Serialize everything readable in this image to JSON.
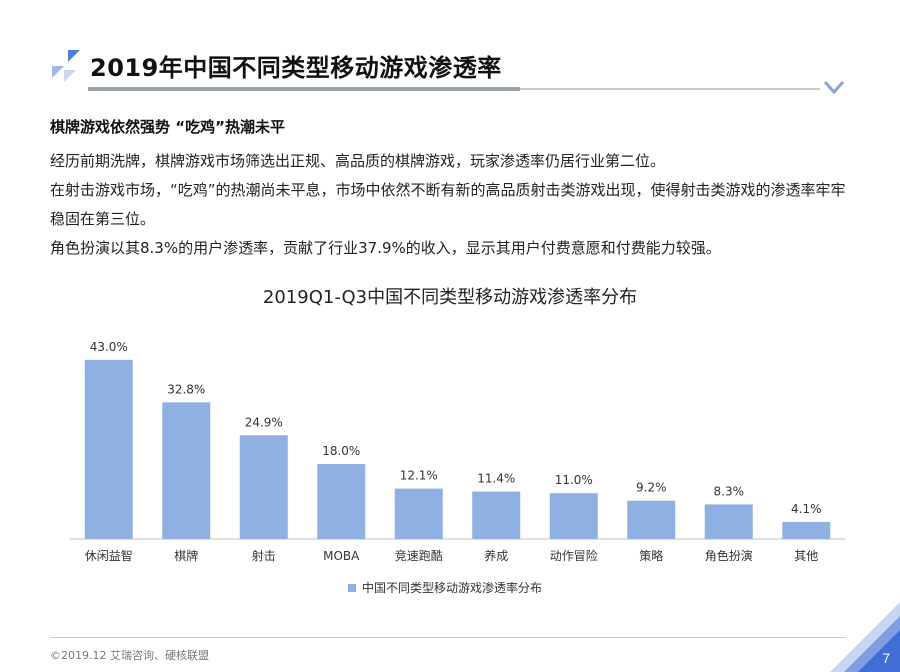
{
  "header": {
    "title": "2019年中国不同类型移动游戏渗透率"
  },
  "section": {
    "heading": "棋牌游戏依然强势 “吃鸡”热潮未平",
    "paragraphs": [
      "经历前期洗牌，棋牌游戏市场筛选出正规、高品质的棋牌游戏，玩家渗透率仍居行业第二位。",
      "在射击游戏市场，“吃鸡”的热潮尚未平息，市场中依然不断有新的高品质射击类游戏出现，使得射击类游戏的渗透率牢牢稳固在第三位。",
      "角色扮演以其8.3%的用户渗透率，贡献了行业37.9%的收入，显示其用户付费意愿和付费能力较强。"
    ]
  },
  "chart_data": {
    "type": "bar",
    "title": "2019Q1-Q3中国不同类型移动游戏渗透率分布",
    "categories": [
      "休闲益智",
      "棋牌",
      "射击",
      "MOBA",
      "竞速跑酷",
      "养成",
      "动作冒险",
      "策略",
      "角色扮演",
      "其他"
    ],
    "series": [
      {
        "name": "中国不同类型移动游戏渗透率分布",
        "values": [
          43.0,
          32.8,
          24.9,
          18.0,
          12.1,
          11.4,
          11.0,
          9.2,
          8.3,
          4.1
        ],
        "labels": [
          "43.0%",
          "32.8%",
          "24.9%",
          "18.0%",
          "12.1%",
          "11.4%",
          "11.0%",
          "9.2%",
          "8.3%",
          "4.1%"
        ]
      }
    ],
    "ylim": [
      0,
      48
    ],
    "xlabel": "",
    "ylabel": "",
    "grid": false,
    "legend_position": "bottom",
    "bar_color": "#8eb0e3"
  },
  "footer": {
    "copyright": "©2019.12 艾瑞咨询、硬核联盟",
    "page_number": "7"
  },
  "colors": {
    "accent": "#3f74d8",
    "bar": "#8eb0e3"
  }
}
